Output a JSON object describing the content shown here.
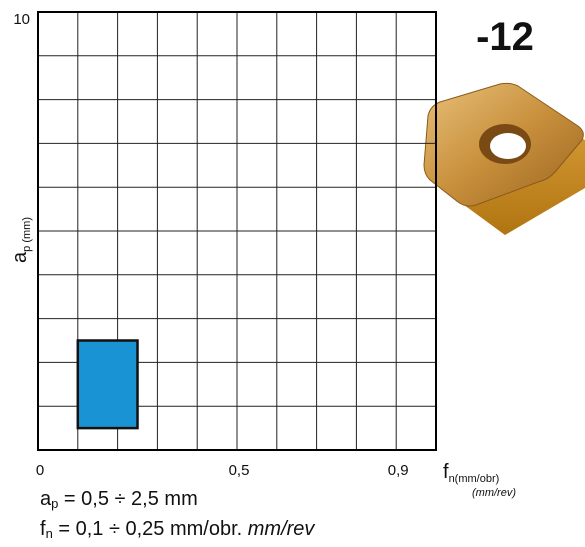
{
  "chart_data": {
    "type": "range",
    "title": "-12",
    "y_label": {
      "main": "a",
      "sub": "p (mm)"
    },
    "x_label": {
      "main": "f",
      "sub": "n(mm/obr)",
      "sub2": "(mm/rev)"
    },
    "xlim": [
      0,
      1
    ],
    "ylim": [
      0,
      10
    ],
    "xticks": [
      0,
      {
        "value": 0.5,
        "label": "0,5"
      },
      {
        "value": 0.9,
        "label": "0,9"
      }
    ],
    "yticks": [
      10
    ],
    "xgrid": [
      0.1,
      0.2,
      0.3,
      0.4,
      0.5,
      0.6,
      0.7,
      0.8,
      0.9
    ],
    "ygrid": [
      1,
      2,
      3,
      4,
      5,
      6,
      7,
      8,
      9
    ],
    "series": [
      {
        "color": "#1a93d4",
        "x": [
          0.1,
          0.25
        ],
        "y": [
          0.5,
          2.5
        ]
      }
    ],
    "annotations": [
      {
        "main": "a",
        "sub": "p",
        "text": " = 0,5 ÷ 2,5 mm"
      },
      {
        "main": "f",
        "sub": "n",
        "text": " = 0,1 ÷ 0,25 mm/obr. ",
        "italic": "mm/rev"
      }
    ]
  }
}
